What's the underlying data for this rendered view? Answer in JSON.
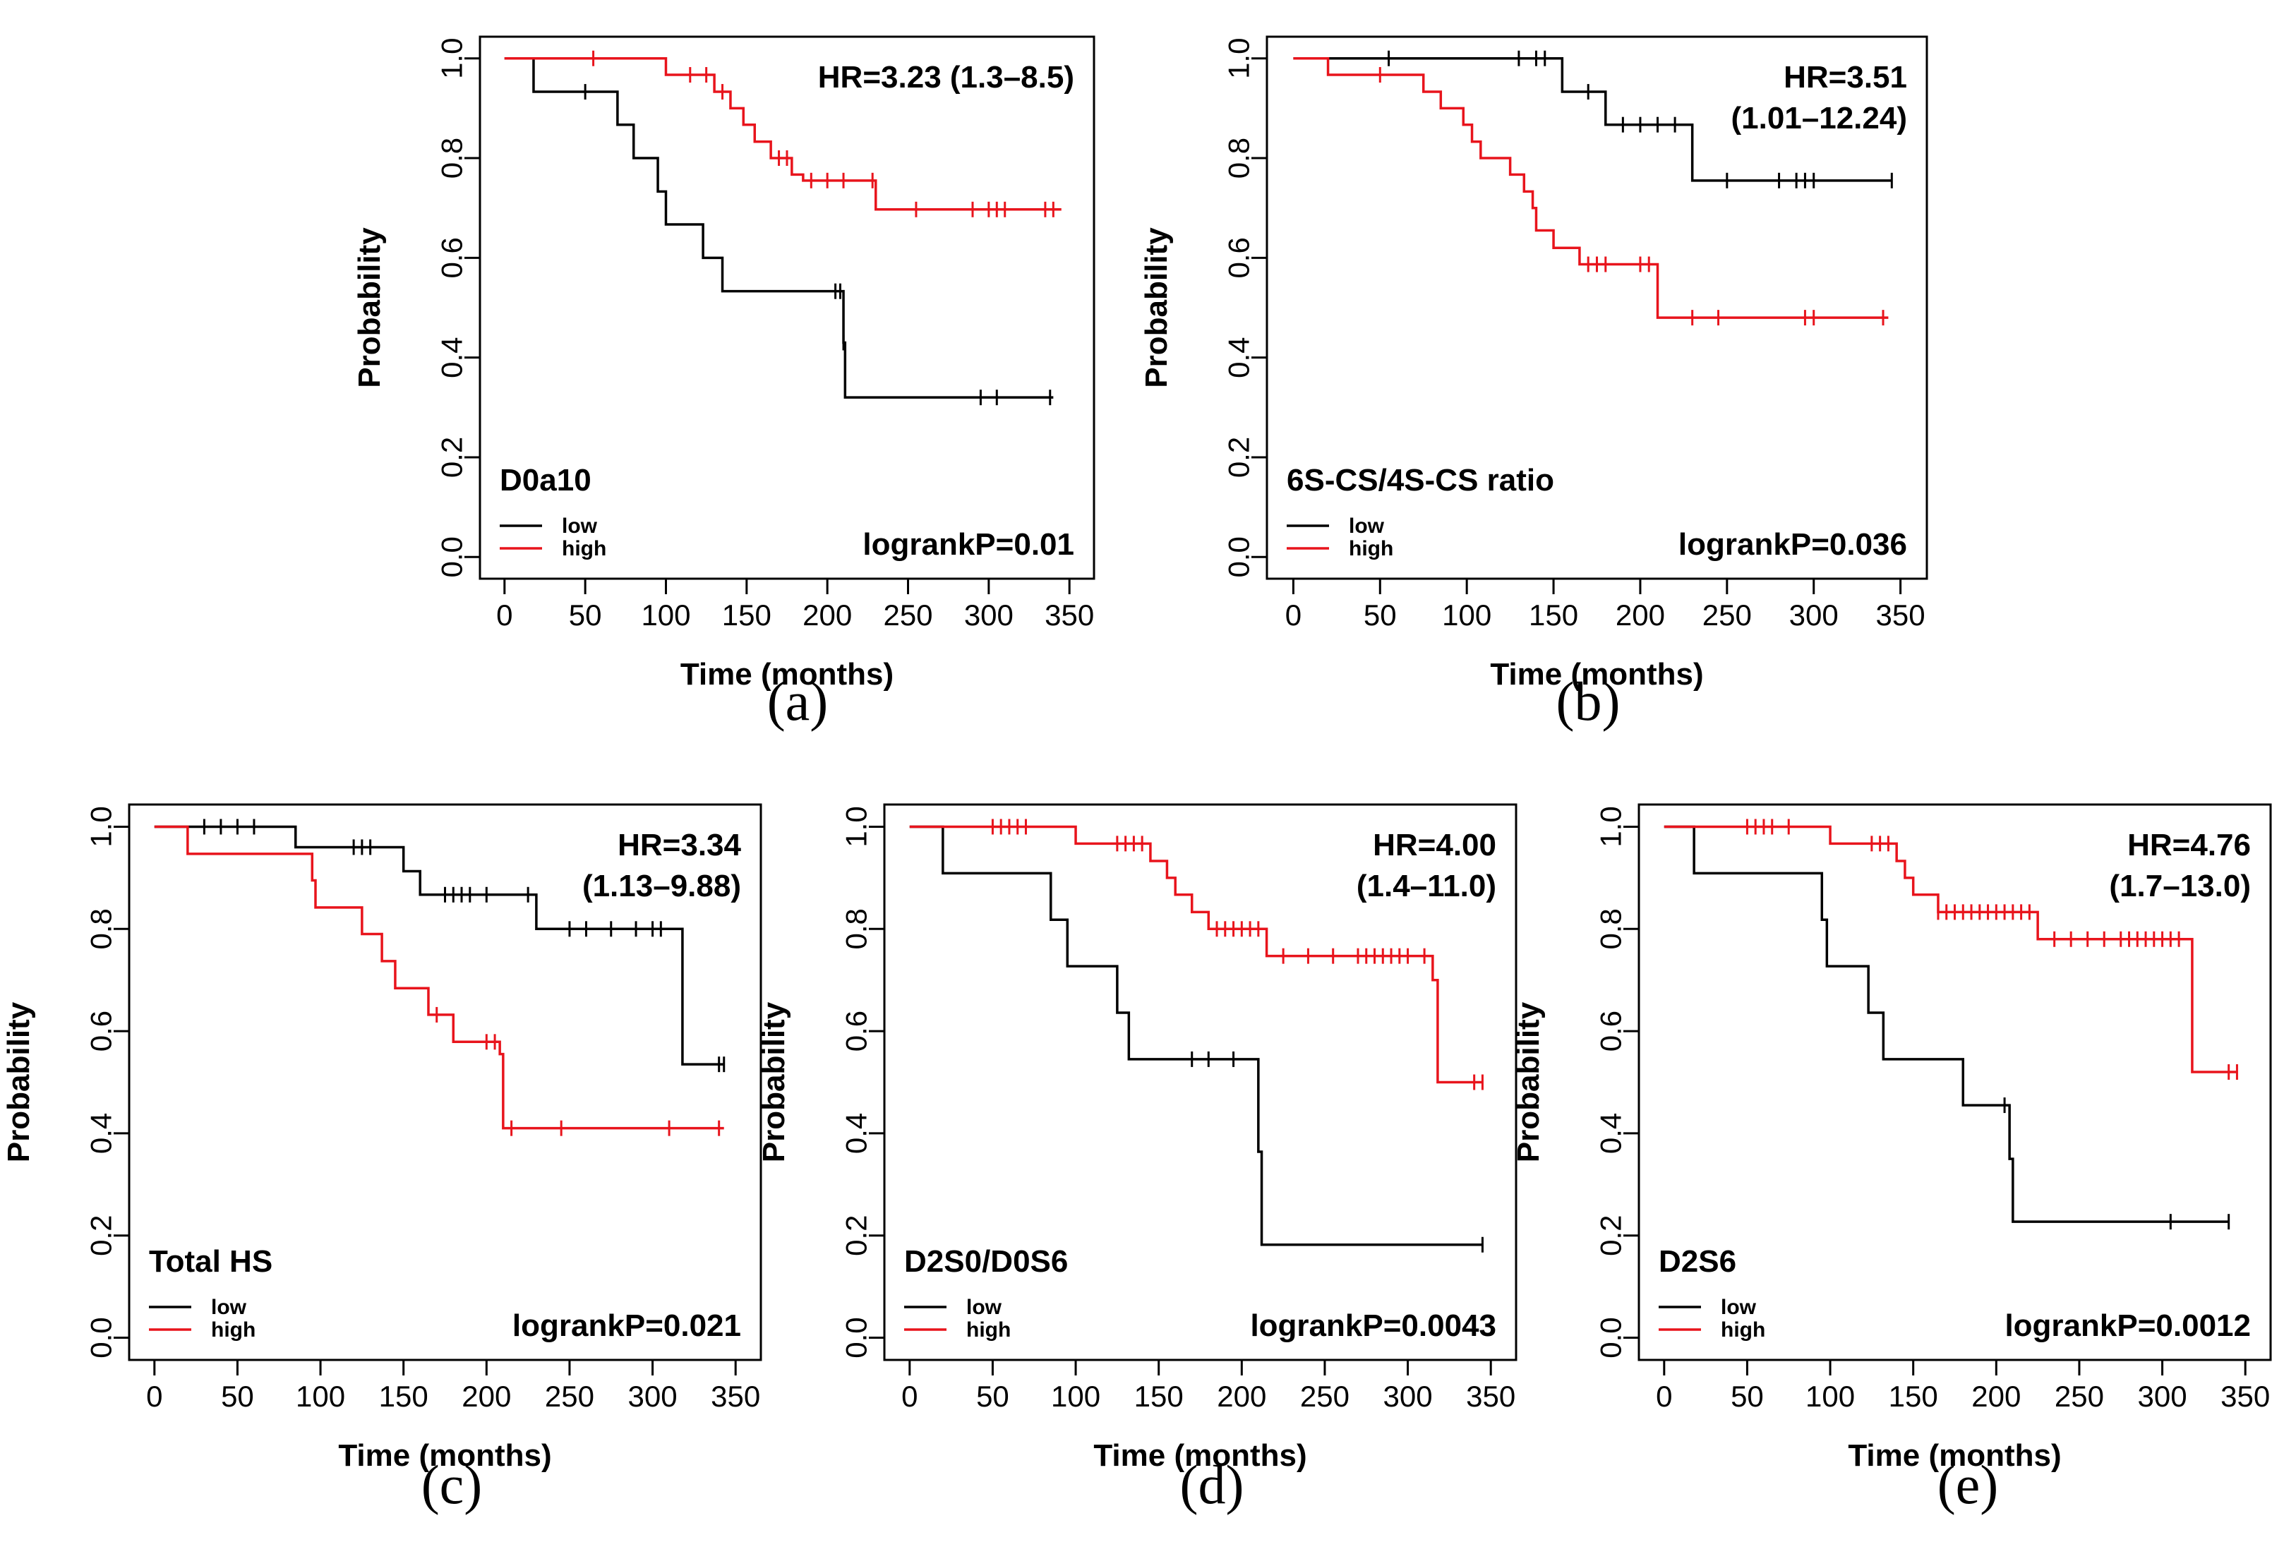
{
  "figure": {
    "ylabel": "Probability",
    "xlabel": "Time (months)",
    "colors": {
      "low": "#000000",
      "high": "#e8141c",
      "frame": "#000000"
    }
  },
  "chart_data": [
    {
      "id": "a",
      "caption": "(a)",
      "type": "line",
      "title": "D0a10",
      "hr": [
        "HR=3.23 (1.3–8.5)"
      ],
      "pvalue": "logrankP=0.01",
      "xlim": [
        0,
        350
      ],
      "ylim": [
        0,
        1
      ],
      "xticks": [
        0,
        50,
        100,
        150,
        200,
        250,
        300,
        350
      ],
      "yticks": [
        "0.0",
        "0.2",
        "0.4",
        "0.6",
        "0.8",
        "1.0"
      ],
      "legend": [
        "low",
        "high"
      ],
      "series": [
        {
          "name": "low",
          "color": "#000000",
          "steps": [
            [
              0,
              1.0
            ],
            [
              18,
              0.933
            ],
            [
              70,
              0.867
            ],
            [
              80,
              0.8
            ],
            [
              95,
              0.733
            ],
            [
              100,
              0.667
            ],
            [
              123,
              0.6
            ],
            [
              135,
              0.533
            ],
            [
              210,
              0.43
            ],
            [
              211,
              0.32
            ],
            [
              340,
              0.32
            ]
          ],
          "censors": [
            50,
            205,
            208,
            210,
            295,
            305,
            338
          ]
        },
        {
          "name": "high",
          "color": "#e8141c",
          "steps": [
            [
              0,
              1.0
            ],
            [
              100,
              0.967
            ],
            [
              130,
              0.933
            ],
            [
              140,
              0.9
            ],
            [
              148,
              0.867
            ],
            [
              155,
              0.833
            ],
            [
              165,
              0.8
            ],
            [
              178,
              0.767
            ],
            [
              185,
              0.755
            ],
            [
              230,
              0.697
            ],
            [
              345,
              0.697
            ]
          ],
          "censors": [
            55,
            115,
            125,
            135,
            170,
            175,
            190,
            200,
            210,
            228,
            255,
            290,
            300,
            305,
            310,
            335,
            340
          ]
        }
      ]
    },
    {
      "id": "b",
      "caption": "(b)",
      "type": "line",
      "title": "6S-CS/4S-CS ratio",
      "hr": [
        "HR=3.51",
        "(1.01–12.24)"
      ],
      "pvalue": "logrankP=0.036",
      "xlim": [
        0,
        350
      ],
      "ylim": [
        0,
        1
      ],
      "xticks": [
        0,
        50,
        100,
        150,
        200,
        250,
        300,
        350
      ],
      "yticks": [
        "0.0",
        "0.2",
        "0.4",
        "0.6",
        "0.8",
        "1.0"
      ],
      "legend": [
        "low",
        "high"
      ],
      "series": [
        {
          "name": "low",
          "color": "#000000",
          "steps": [
            [
              0,
              1.0
            ],
            [
              155,
              0.933
            ],
            [
              180,
              0.867
            ],
            [
              230,
              0.755
            ],
            [
              345,
              0.755
            ]
          ],
          "censors": [
            55,
            130,
            140,
            145,
            170,
            190,
            200,
            210,
            220,
            250,
            280,
            290,
            295,
            300,
            345
          ]
        },
        {
          "name": "high",
          "color": "#e8141c",
          "steps": [
            [
              0,
              1.0
            ],
            [
              20,
              0.967
            ],
            [
              75,
              0.933
            ],
            [
              85,
              0.9
            ],
            [
              98,
              0.867
            ],
            [
              103,
              0.833
            ],
            [
              108,
              0.8
            ],
            [
              125,
              0.767
            ],
            [
              133,
              0.733
            ],
            [
              138,
              0.7
            ],
            [
              140,
              0.655
            ],
            [
              150,
              0.62
            ],
            [
              165,
              0.587
            ],
            [
              210,
              0.48
            ],
            [
              343,
              0.48
            ]
          ],
          "censors": [
            50,
            170,
            175,
            180,
            200,
            205,
            230,
            245,
            295,
            300,
            340
          ]
        }
      ]
    },
    {
      "id": "c",
      "caption": "(c)",
      "type": "line",
      "title": "Total HS",
      "hr": [
        "HR=3.34",
        "(1.13–9.88)"
      ],
      "pvalue": "logrankP=0.021",
      "xlim": [
        0,
        350
      ],
      "ylim": [
        0,
        1
      ],
      "xticks": [
        0,
        50,
        100,
        150,
        200,
        250,
        300,
        350
      ],
      "yticks": [
        "0.0",
        "0.2",
        "0.4",
        "0.6",
        "0.8",
        "1.0"
      ],
      "legend": [
        "low",
        "high"
      ],
      "series": [
        {
          "name": "low",
          "color": "#000000",
          "steps": [
            [
              0,
              1.0
            ],
            [
              85,
              0.96
            ],
            [
              150,
              0.913
            ],
            [
              160,
              0.867
            ],
            [
              230,
              0.8
            ],
            [
              318,
              0.535
            ],
            [
              343,
              0.535
            ]
          ],
          "censors": [
            30,
            40,
            50,
            60,
            120,
            125,
            130,
            175,
            180,
            185,
            190,
            200,
            225,
            250,
            260,
            275,
            290,
            300,
            305,
            340,
            343
          ]
        },
        {
          "name": "high",
          "color": "#e8141c",
          "steps": [
            [
              0,
              1.0
            ],
            [
              20,
              0.947
            ],
            [
              95,
              0.895
            ],
            [
              97,
              0.842
            ],
            [
              125,
              0.79
            ],
            [
              137,
              0.737
            ],
            [
              145,
              0.684
            ],
            [
              165,
              0.632
            ],
            [
              180,
              0.579
            ],
            [
              208,
              0.555
            ],
            [
              210,
              0.41
            ],
            [
              343,
              0.41
            ]
          ],
          "censors": [
            170,
            200,
            205,
            215,
            245,
            310,
            340
          ]
        }
      ]
    },
    {
      "id": "d",
      "caption": "(d)",
      "type": "line",
      "title": "D2S0/D0S6",
      "hr": [
        "HR=4.00",
        "(1.4–11.0)"
      ],
      "pvalue": "logrankP=0.0043",
      "xlim": [
        0,
        350
      ],
      "ylim": [
        0,
        1
      ],
      "xticks": [
        0,
        50,
        100,
        150,
        200,
        250,
        300,
        350
      ],
      "yticks": [
        "0.0",
        "0.2",
        "0.4",
        "0.6",
        "0.8",
        "1.0"
      ],
      "legend": [
        "low",
        "high"
      ],
      "series": [
        {
          "name": "low",
          "color": "#000000",
          "steps": [
            [
              0,
              1.0
            ],
            [
              20,
              0.909
            ],
            [
              85,
              0.818
            ],
            [
              95,
              0.727
            ],
            [
              125,
              0.636
            ],
            [
              132,
              0.545
            ],
            [
              210,
              0.364
            ],
            [
              212,
              0.182
            ],
            [
              345,
              0.182
            ]
          ],
          "censors": [
            170,
            180,
            195,
            345
          ]
        },
        {
          "name": "high",
          "color": "#e8141c",
          "steps": [
            [
              0,
              1.0
            ],
            [
              100,
              0.967
            ],
            [
              145,
              0.933
            ],
            [
              155,
              0.9
            ],
            [
              160,
              0.867
            ],
            [
              170,
              0.833
            ],
            [
              180,
              0.8
            ],
            [
              215,
              0.747
            ],
            [
              315,
              0.7
            ],
            [
              318,
              0.5
            ],
            [
              345,
              0.5
            ]
          ],
          "censors": [
            50,
            55,
            60,
            65,
            70,
            125,
            130,
            135,
            140,
            185,
            190,
            195,
            200,
            205,
            210,
            225,
            240,
            255,
            270,
            275,
            280,
            285,
            290,
            295,
            300,
            310,
            340,
            345
          ]
        }
      ]
    },
    {
      "id": "e",
      "caption": "(e)",
      "type": "line",
      "title": "D2S6",
      "hr": [
        "HR=4.76",
        "(1.7–13.0)"
      ],
      "pvalue": "logrankP=0.0012",
      "xlim": [
        0,
        350
      ],
      "ylim": [
        0,
        1
      ],
      "xticks": [
        0,
        50,
        100,
        150,
        200,
        250,
        300,
        350
      ],
      "yticks": [
        "0.0",
        "0.2",
        "0.4",
        "0.6",
        "0.8",
        "1.0"
      ],
      "legend": [
        "low",
        "high"
      ],
      "series": [
        {
          "name": "low",
          "color": "#000000",
          "steps": [
            [
              0,
              1.0
            ],
            [
              18,
              0.909
            ],
            [
              95,
              0.818
            ],
            [
              98,
              0.727
            ],
            [
              123,
              0.636
            ],
            [
              132,
              0.545
            ],
            [
              180,
              0.455
            ],
            [
              208,
              0.35
            ],
            [
              210,
              0.227
            ],
            [
              340,
              0.227
            ]
          ],
          "censors": [
            205,
            305,
            340
          ]
        },
        {
          "name": "high",
          "color": "#e8141c",
          "steps": [
            [
              0,
              1.0
            ],
            [
              100,
              0.967
            ],
            [
              140,
              0.933
            ],
            [
              145,
              0.9
            ],
            [
              150,
              0.867
            ],
            [
              165,
              0.833
            ],
            [
              225,
              0.78
            ],
            [
              318,
              0.52
            ],
            [
              345,
              0.52
            ]
          ],
          "censors": [
            50,
            55,
            60,
            65,
            75,
            125,
            130,
            135,
            165,
            170,
            175,
            180,
            185,
            190,
            195,
            200,
            205,
            210,
            215,
            220,
            235,
            245,
            255,
            265,
            275,
            280,
            285,
            290,
            295,
            300,
            305,
            310,
            340,
            345
          ]
        }
      ]
    }
  ]
}
